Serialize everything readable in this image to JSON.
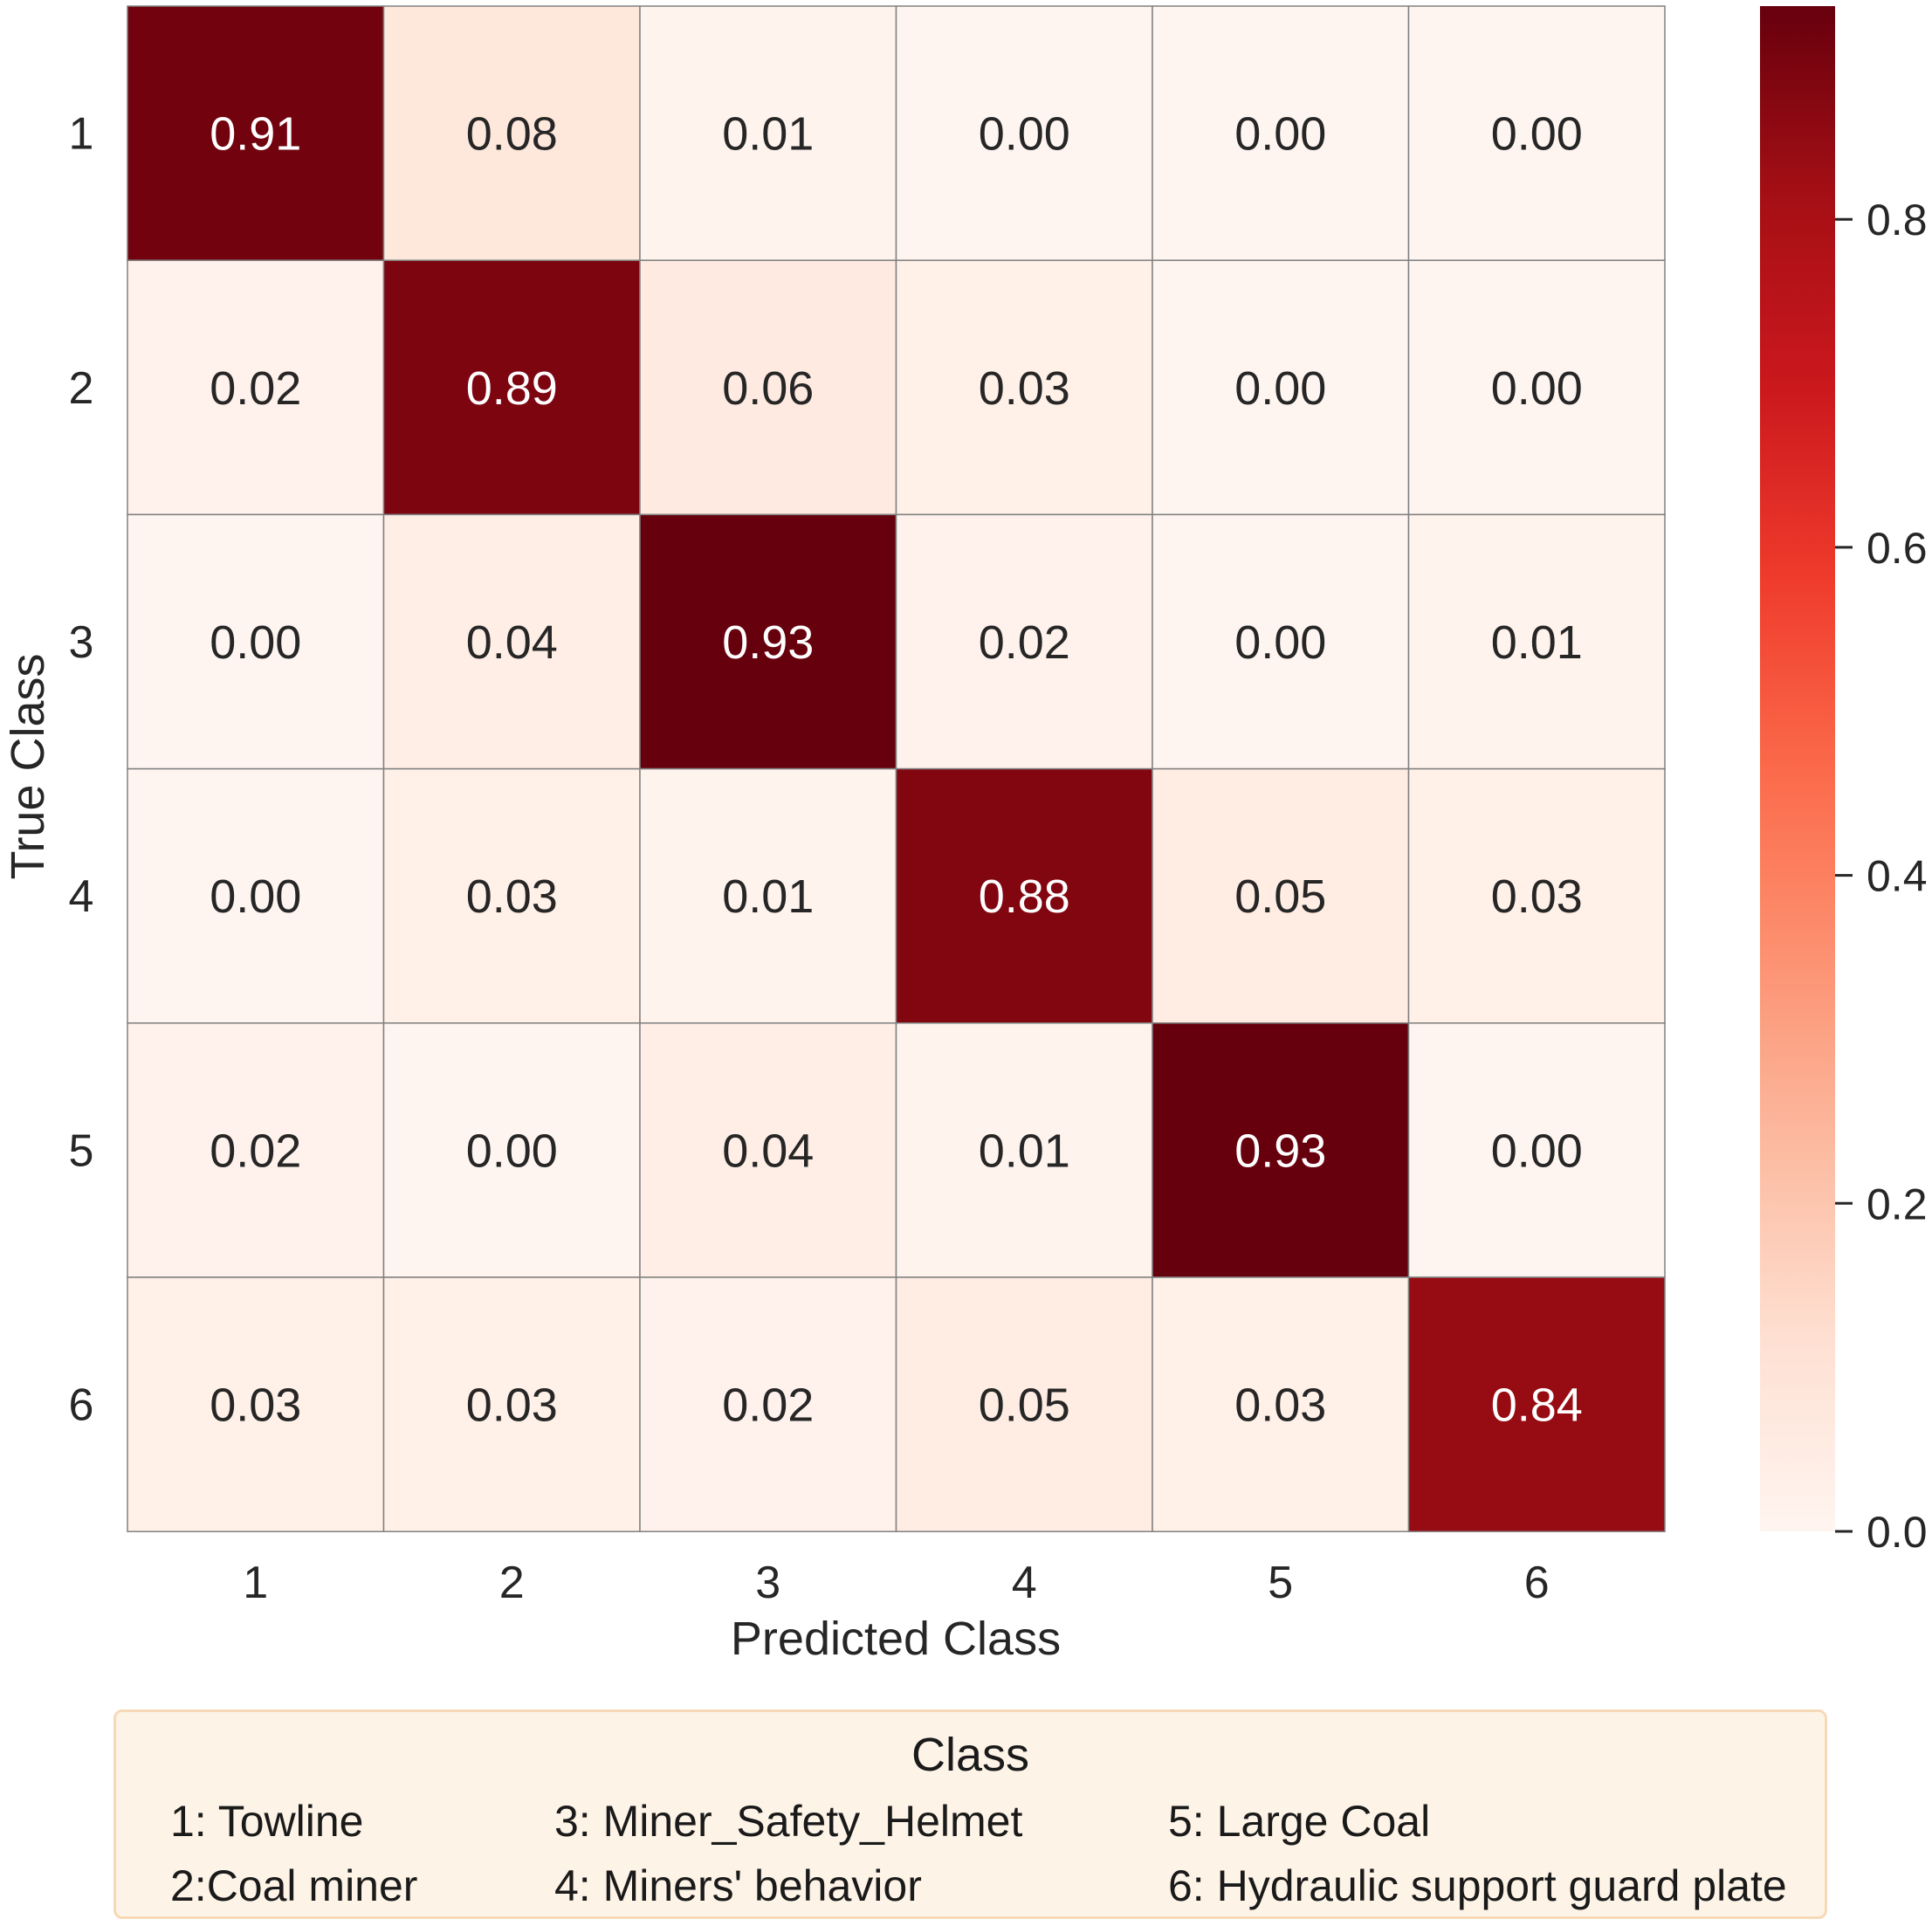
{
  "chart_data": {
    "type": "heatmap",
    "xlabel": "Predicted Class",
    "ylabel": "True Class",
    "x_categories": [
      "1",
      "2",
      "3",
      "4",
      "5",
      "6"
    ],
    "y_categories": [
      "1",
      "2",
      "3",
      "4",
      "5",
      "6"
    ],
    "values": [
      [
        0.91,
        0.08,
        0.01,
        0.0,
        0.0,
        0.0
      ],
      [
        0.02,
        0.89,
        0.06,
        0.03,
        0.0,
        0.0
      ],
      [
        0.0,
        0.04,
        0.93,
        0.02,
        0.0,
        0.01
      ],
      [
        0.0,
        0.03,
        0.01,
        0.88,
        0.05,
        0.03
      ],
      [
        0.02,
        0.0,
        0.04,
        0.01,
        0.93,
        0.0
      ],
      [
        0.03,
        0.03,
        0.02,
        0.05,
        0.03,
        0.84
      ]
    ],
    "value_format": "0.00",
    "colormap": "Reds",
    "colorbar": {
      "range": [
        0,
        0.93
      ],
      "ticks": [
        0.0,
        0.2,
        0.4,
        0.6,
        0.8
      ],
      "tick_labels": [
        "0.0",
        "0.2",
        "0.4",
        "0.6",
        "0.8"
      ]
    },
    "colors": {
      "low": "#fff5f0",
      "mid": "#fb6a4a",
      "high": "#67000d",
      "grid_line": "#808080",
      "legend_background": "#fdf3e6",
      "legend_border": "#f7d9b8"
    }
  },
  "legend": {
    "title": "Class",
    "items": [
      "1: Towline",
      "2:Coal miner",
      "3: Miner_Safety_Helmet",
      "4: Miners' behavior",
      "5: Large Coal",
      "6: Hydraulic support guard plate"
    ]
  }
}
